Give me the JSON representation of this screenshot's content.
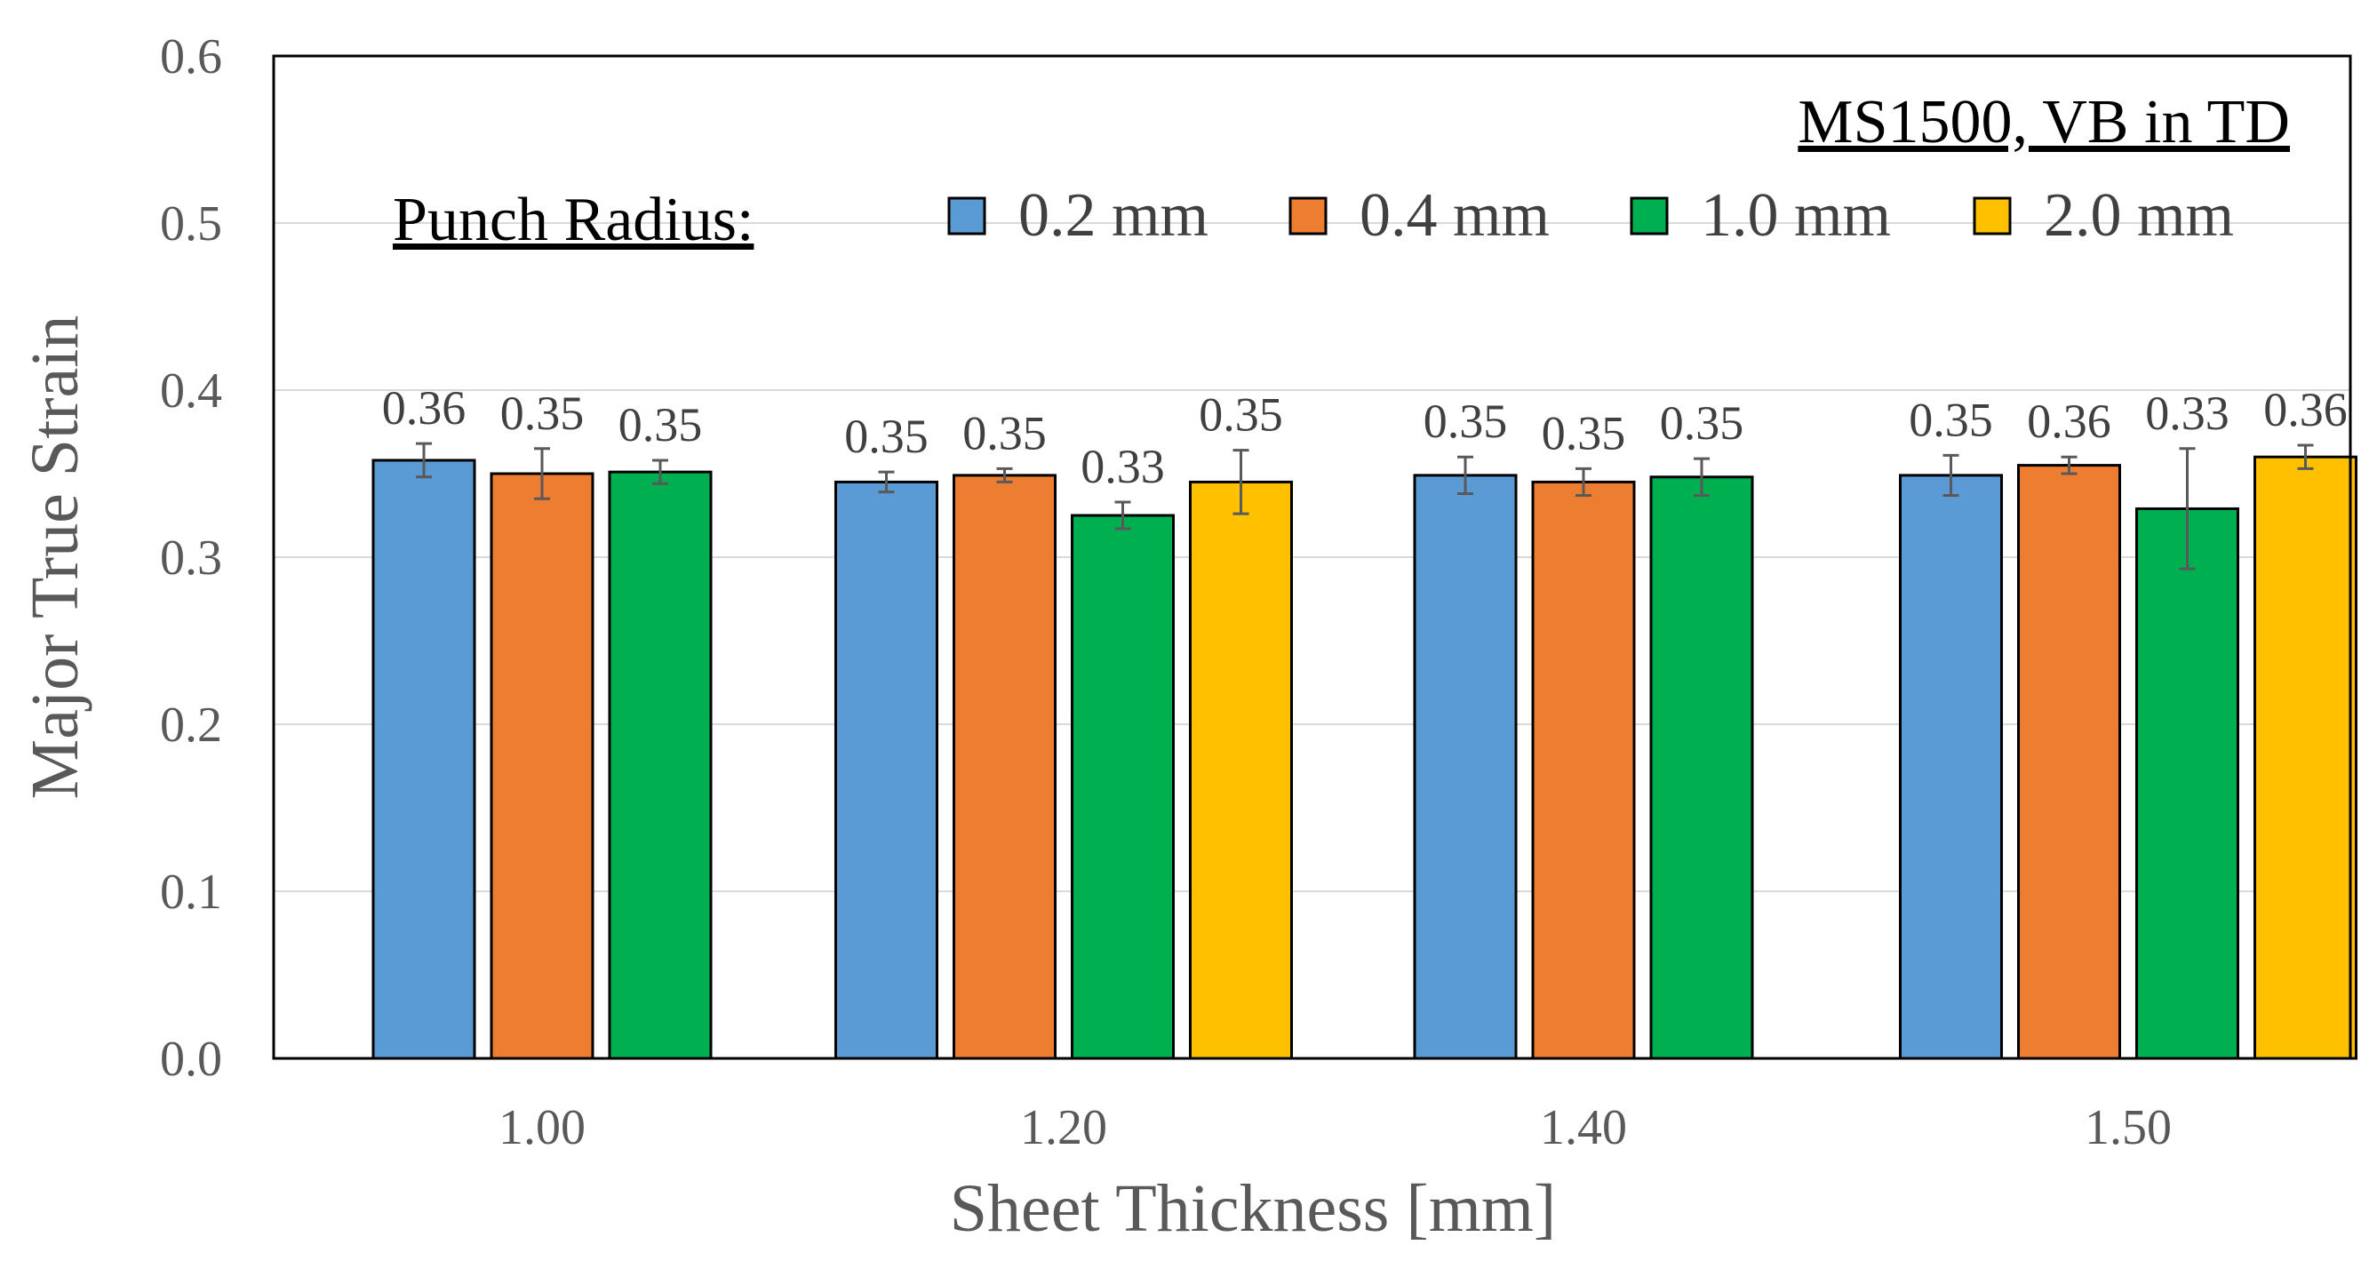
{
  "chart_data": {
    "type": "bar",
    "title": "",
    "xlabel": "Sheet Thickness [mm]",
    "ylabel": "Major True Strain",
    "ylim": [
      0,
      0.6
    ],
    "yticks": [
      "0.0",
      "0.1",
      "0.2",
      "0.3",
      "0.4",
      "0.5",
      "0.6"
    ],
    "categories": [
      "1.00",
      "1.20",
      "1.40",
      "1.50"
    ],
    "legend_title": "Punch Radius:",
    "annotation": "MS1500, VB in TD",
    "legend_position": "top",
    "grid": true,
    "series": [
      {
        "name": "0.2 mm",
        "color": "#5B9BD5",
        "values": [
          0.358,
          0.345,
          0.349,
          0.349
        ],
        "errors": [
          0.01,
          0.006,
          0.011,
          0.012
        ],
        "labels": [
          "0.36",
          "0.35",
          "0.35",
          "0.35"
        ]
      },
      {
        "name": "0.4 mm",
        "color": "#ED7D31",
        "values": [
          0.35,
          0.349,
          0.345,
          0.355
        ],
        "errors": [
          0.015,
          0.004,
          0.008,
          0.005
        ],
        "labels": [
          "0.35",
          "0.35",
          "0.35",
          "0.36"
        ]
      },
      {
        "name": "1.0 mm",
        "color": "#00B050",
        "values": [
          0.351,
          0.325,
          0.348,
          0.329
        ],
        "errors": [
          0.007,
          0.008,
          0.011,
          0.036
        ],
        "labels": [
          "0.35",
          "0.33",
          "0.35",
          "0.33"
        ]
      },
      {
        "name": "2.0 mm",
        "color": "#FFC000",
        "values": [
          null,
          0.345,
          null,
          0.36
        ],
        "errors": [
          null,
          0.019,
          null,
          0.007
        ],
        "labels": [
          null,
          "0.35",
          null,
          "0.36"
        ]
      }
    ]
  }
}
